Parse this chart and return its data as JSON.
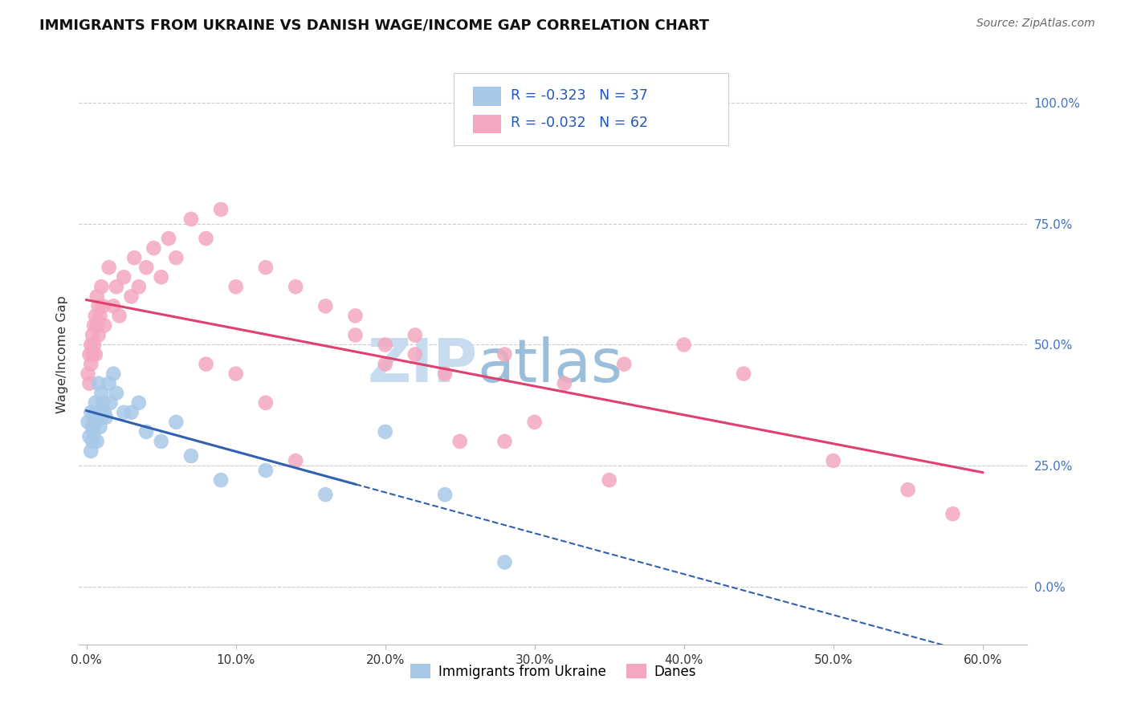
{
  "title": "IMMIGRANTS FROM UKRAINE VS DANISH WAGE/INCOME GAP CORRELATION CHART",
  "source": "Source: ZipAtlas.com",
  "xlabel_vals": [
    0,
    10,
    20,
    30,
    40,
    50,
    60
  ],
  "ylabel_vals": [
    0,
    25,
    50,
    75,
    100
  ],
  "legend_label1": "Immigrants from Ukraine",
  "legend_label2": "Danes",
  "R1": "-0.323",
  "N1": "37",
  "R2": "-0.032",
  "N2": "62",
  "color_blue": "#A8C8E8",
  "color_pink": "#F4A8C0",
  "color_blue_line": "#3060B0",
  "color_pink_line": "#E04070",
  "watermark_zip": "ZIP",
  "watermark_atlas": "atlas",
  "watermark_color_zip": "#C8DCF0",
  "watermark_color_atlas": "#90B8D8",
  "xlim": [
    -0.5,
    63
  ],
  "ylim": [
    -12,
    108
  ],
  "blue_x": [
    0.1,
    0.2,
    0.3,
    0.3,
    0.4,
    0.4,
    0.5,
    0.5,
    0.6,
    0.6,
    0.7,
    0.7,
    0.8,
    0.8,
    0.9,
    1.0,
    1.0,
    1.1,
    1.2,
    1.3,
    1.5,
    1.6,
    1.8,
    2.0,
    2.5,
    3.0,
    3.5,
    4.0,
    5.0,
    6.0,
    7.0,
    9.0,
    12.0,
    16.0,
    20.0,
    24.0,
    28.0
  ],
  "blue_y": [
    34,
    31,
    36,
    28,
    33,
    30,
    35,
    32,
    38,
    34,
    36,
    30,
    42,
    36,
    33,
    40,
    35,
    38,
    36,
    35,
    42,
    38,
    44,
    40,
    36,
    36,
    38,
    32,
    30,
    34,
    27,
    22,
    24,
    19,
    32,
    19,
    5
  ],
  "pink_x": [
    0.1,
    0.2,
    0.2,
    0.3,
    0.3,
    0.4,
    0.4,
    0.5,
    0.5,
    0.6,
    0.6,
    0.7,
    0.7,
    0.8,
    0.8,
    0.9,
    1.0,
    1.1,
    1.2,
    1.5,
    1.8,
    2.0,
    2.2,
    2.5,
    3.0,
    3.2,
    3.5,
    4.0,
    4.5,
    5.0,
    5.5,
    6.0,
    7.0,
    8.0,
    9.0,
    10.0,
    12.0,
    14.0,
    16.0,
    18.0,
    20.0,
    22.0,
    24.0,
    28.0,
    32.0,
    36.0,
    40.0,
    44.0,
    50.0,
    55.0,
    20.0,
    18.0,
    25.0,
    30.0,
    12.0,
    8.0,
    14.0,
    22.0,
    28.0,
    10.0,
    35.0,
    58.0
  ],
  "pink_y": [
    44,
    48,
    42,
    50,
    46,
    52,
    48,
    54,
    50,
    56,
    48,
    60,
    54,
    58,
    52,
    56,
    62,
    58,
    54,
    66,
    58,
    62,
    56,
    64,
    60,
    68,
    62,
    66,
    70,
    64,
    72,
    68,
    76,
    72,
    78,
    62,
    66,
    62,
    58,
    56,
    50,
    52,
    44,
    48,
    42,
    46,
    50,
    44,
    26,
    20,
    46,
    52,
    30,
    34,
    38,
    46,
    26,
    48,
    30,
    44,
    22,
    15
  ],
  "blue_trend_start": 0,
  "blue_trend_solid_end": 18,
  "blue_trend_dash_end": 63,
  "pink_trend_start": 0,
  "pink_trend_end": 60
}
